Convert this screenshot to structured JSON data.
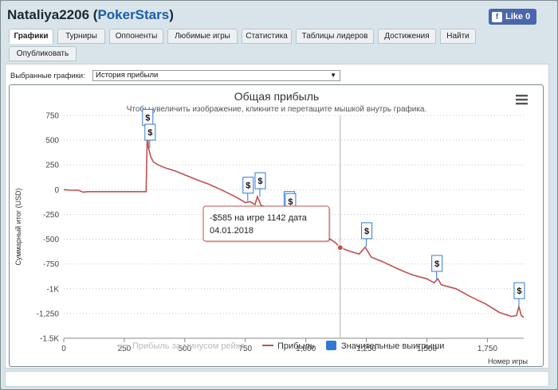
{
  "header": {
    "username": "Nataliya2206",
    "site_open": "(",
    "site": "PokerStars",
    "site_close": ")",
    "like_label": "Like 0",
    "like_icon": "f"
  },
  "tabs": [
    {
      "label": "Графики",
      "active": true
    },
    {
      "label": "Турниры"
    },
    {
      "label": "Оппоненты"
    },
    {
      "label": "Любимые игры"
    },
    {
      "label": "Статистика"
    },
    {
      "label": "Таблицы лидеров"
    },
    {
      "label": "Достижения"
    },
    {
      "label": "Найти"
    },
    {
      "label": "Опубликовать"
    }
  ],
  "selector": {
    "label": "Выбранные графики:",
    "value": "История прибыли"
  },
  "chart_data": {
    "type": "line",
    "title": "Общая прибыль",
    "subtitle": "Чтобы увеличить изображение, кликните и перетащите мышкой внутрь графика.",
    "ylabel": "Суммарный итог (USD)",
    "xlabel": "Номер игры",
    "xlim": [
      0,
      1900
    ],
    "ylim": [
      -1500,
      750
    ],
    "x_ticks": [
      0,
      250,
      500,
      750,
      1000,
      1250,
      1500,
      1750
    ],
    "x_tick_labels": [
      "0",
      "250",
      "500",
      "750",
      "1,000",
      "1,250",
      "1,500",
      "1,750"
    ],
    "y_ticks": [
      750,
      500,
      250,
      0,
      -250,
      -500,
      -750,
      -1000,
      -1250,
      -1500
    ],
    "y_tick_labels": [
      "750",
      "500",
      "250",
      "0",
      "-250",
      "-500",
      "-750",
      "-1K",
      "-1,250",
      "-1.5K"
    ],
    "grid": "horizontal dotted",
    "legend_position": "bottom",
    "legend": [
      {
        "name": "Прибыль за минусом рейка",
        "color": "#cccccc",
        "kind": "line"
      },
      {
        "name": "Прибыль",
        "color": "#c0504d",
        "kind": "line"
      },
      {
        "name": "Значительные выигрыши",
        "color": "#2e79d6",
        "kind": "box"
      }
    ],
    "series": [
      {
        "name": "Прибыль",
        "color": "#c0504d",
        "x": [
          0,
          30,
          60,
          80,
          100,
          200,
          300,
          340,
          345,
          350,
          360,
          370,
          390,
          420,
          460,
          500,
          550,
          600,
          650,
          700,
          730,
          750,
          770,
          790,
          800,
          815,
          830,
          870,
          900,
          930,
          960,
          1000,
          1040,
          1080,
          1120,
          1142,
          1180,
          1220,
          1245,
          1255,
          1270,
          1320,
          1380,
          1440,
          1500,
          1530,
          1545,
          1560,
          1620,
          1680,
          1740,
          1800,
          1850,
          1870,
          1880,
          1890,
          1900
        ],
        "y": [
          0,
          -5,
          -5,
          -25,
          -20,
          -20,
          -20,
          -20,
          570,
          420,
          330,
          280,
          250,
          220,
          190,
          150,
          100,
          55,
          0,
          -60,
          -100,
          -130,
          -120,
          -150,
          -70,
          -160,
          -170,
          -180,
          -220,
          -280,
          -300,
          -360,
          -410,
          -470,
          -530,
          -585,
          -620,
          -650,
          -580,
          -620,
          -680,
          -730,
          -800,
          -860,
          -900,
          -940,
          -900,
          -960,
          -1000,
          -1080,
          -1150,
          -1240,
          -1280,
          -1270,
          -1180,
          -1270,
          -1290
        ]
      }
    ],
    "big_wins": [
      {
        "x": 345,
        "y": 570
      },
      {
        "x": 355,
        "y": 420
      },
      {
        "x": 760,
        "y": -115
      },
      {
        "x": 810,
        "y": -70
      },
      {
        "x": 930,
        "y": -260
      },
      {
        "x": 935,
        "y": -280
      },
      {
        "x": 1250,
        "y": -575
      },
      {
        "x": 1540,
        "y": -905
      },
      {
        "x": 1880,
        "y": -1180
      }
    ],
    "win_marker_label": "$",
    "tooltip": {
      "x": 1142,
      "y": -585,
      "line1": "-$585 на игре 1142 дата",
      "line2": "04.01.2018"
    },
    "menu_icon": "hamburger-menu-icon"
  }
}
